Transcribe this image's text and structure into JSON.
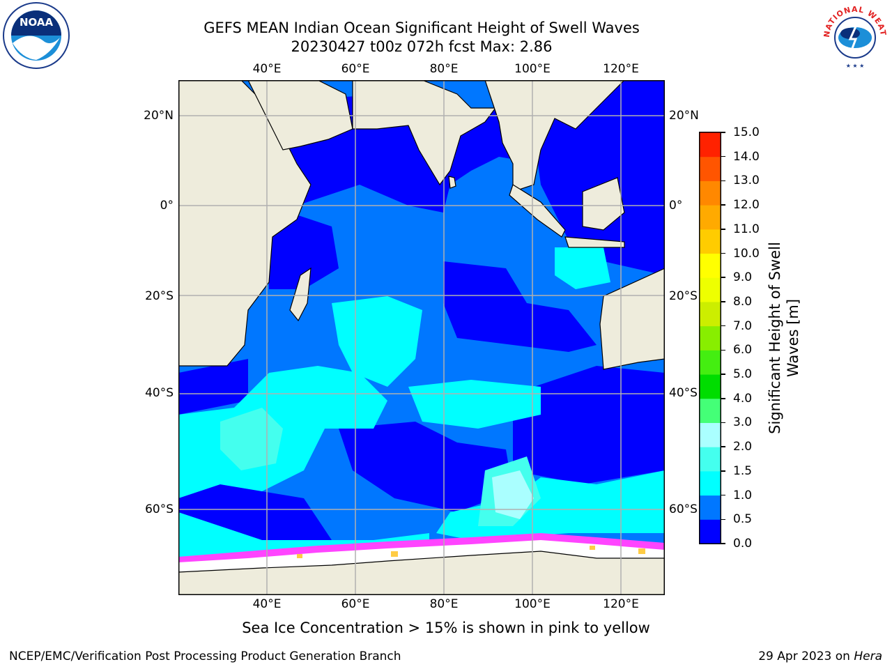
{
  "header": {
    "title_line1": "GEFS MEAN Indian Ocean Significant Height of Swell Waves",
    "title_line2": "20230427 t00z 072h fcst   Max: 2.86"
  },
  "logos": {
    "left": {
      "name": "noaa-logo",
      "text": "NOAA"
    },
    "right": {
      "name": "nws-logo",
      "text": "NATIONAL WEATHER SERVICE"
    }
  },
  "map": {
    "lon_range": [
      20,
      130
    ],
    "lat_range": [
      -73,
      28
    ],
    "lon_ticks": [
      "40°E",
      "60°E",
      "80°E",
      "100°E",
      "120°E"
    ],
    "lat_ticks": [
      "20°N",
      "0°",
      "20°S",
      "40°S",
      "60°S"
    ],
    "colors": {
      "land": "#eeecdc",
      "wave_0_0.5": "#0000ff",
      "wave_0.5_1.0": "#0077ff",
      "wave_1.0_1.5": "#00ffff",
      "wave_1.5_2.0": "#44ffee",
      "wave_2.0_3.0": "#aaffff",
      "sea_ice_edge": "#ff44ff",
      "ice_interior": "#ffffff"
    },
    "grid": true
  },
  "colorbar": {
    "label_line1": "Significant Height of Swell",
    "label_line2": "Waves [m]",
    "ticks": [
      "0.0",
      "0.5",
      "1.0",
      "1.5",
      "2.0",
      "3.0",
      "4.0",
      "5.0",
      "6.0",
      "7.0",
      "8.0",
      "9.0",
      "10.0",
      "11.0",
      "12.0",
      "13.0",
      "14.0",
      "15.0"
    ],
    "colors": [
      "#0000ff",
      "#0077ff",
      "#00ffff",
      "#44ffee",
      "#aaffff",
      "#44ff77",
      "#00dd00",
      "#44ee11",
      "#88ee00",
      "#ccee00",
      "#eeff00",
      "#ffff00",
      "#ffcc00",
      "#ffaa00",
      "#ff8800",
      "#ff5500",
      "#ff2200"
    ]
  },
  "note": "Sea Ice Concentration > 15% is shown in pink to yellow",
  "footer": {
    "left": "NCEP/EMC/Verification Post Processing Product Generation Branch",
    "right_prefix": "29 Apr 2023 on ",
    "right_host": "Hera"
  }
}
